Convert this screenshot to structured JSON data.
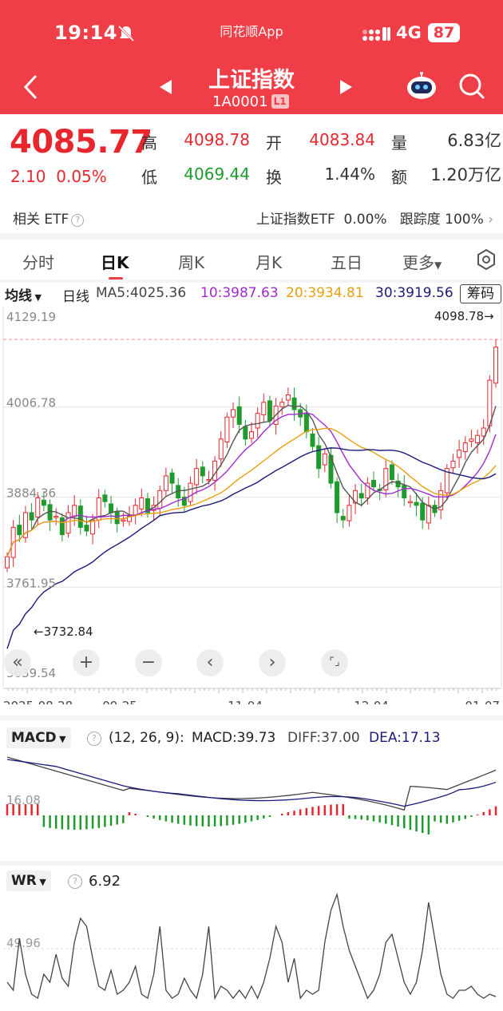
{
  "status": {
    "time": "19:14",
    "app_name": "同花顺App",
    "network": "4G",
    "battery": "87"
  },
  "header": {
    "title": "上证指数",
    "code": "1A0001",
    "level_badge": "L1"
  },
  "quote": {
    "price": "4085.77",
    "change": "2.10",
    "change_pct": "0.05%",
    "high_label": "高",
    "high": "4098.78",
    "low_label": "低",
    "low": "4069.44",
    "open_label": "开",
    "open": "4083.84",
    "turnover_label": "换",
    "turnover": "1.44%",
    "volume_label": "量",
    "volume": "6.83亿",
    "amount_label": "额",
    "amount": "1.20万亿"
  },
  "etf": {
    "left_label": "相关 ETF",
    "right_label": "上证指数ETF",
    "right_pct": "0.00%",
    "track_label": "跟踪度",
    "track_value": "100%"
  },
  "tabs": [
    {
      "label": "分时"
    },
    {
      "label": "日K"
    },
    {
      "label": "周K"
    },
    {
      "label": "月K"
    },
    {
      "label": "五日"
    },
    {
      "label": "更多"
    }
  ],
  "ma_bar": {
    "ma_menu": "均线",
    "line_type": "日线",
    "ma5": "MA5:4025.36",
    "ma10": "10:3987.63",
    "ma20": "20:3934.81",
    "ma30": "30:3919.56",
    "chip_button": "筹码"
  },
  "kline": {
    "y_ticks": [
      "4129.19",
      "4006.78",
      "3884.36",
      "3761.95",
      "3639.54"
    ],
    "max_label": "4098.78→",
    "min_label": "←3732.84",
    "x_ticks": [
      "2025-08-28",
      "09-25",
      "11-04",
      "12-04",
      "01-07"
    ]
  },
  "macd": {
    "menu": "MACD",
    "params": "(12, 26, 9):",
    "macd": "MACD:39.73",
    "diff": "DIFF:37.00",
    "dea": "DEA:17.13",
    "axis_label": "16.08"
  },
  "wr": {
    "menu": "WR",
    "value": "6.92",
    "axis_label": "49.96"
  },
  "colors": {
    "up": "#e8262e",
    "down": "#1f9b2d",
    "ma5": "#555555",
    "ma10": "#a12bd1",
    "ma20": "#e8a010",
    "ma30": "#1a1a7a",
    "header": "#ef3e47"
  },
  "icons": [
    "bell-muted-icon",
    "signal-icon",
    "back-arrow-icon",
    "prev-triangle-icon",
    "next-triangle-icon",
    "robot-icon",
    "search-icon",
    "settings-icon",
    "zoom-out-all-icon",
    "zoom-in-icon",
    "zoom-minus-icon",
    "pan-left-icon",
    "pan-right-icon",
    "fullscreen-icon",
    "help-icon"
  ]
}
